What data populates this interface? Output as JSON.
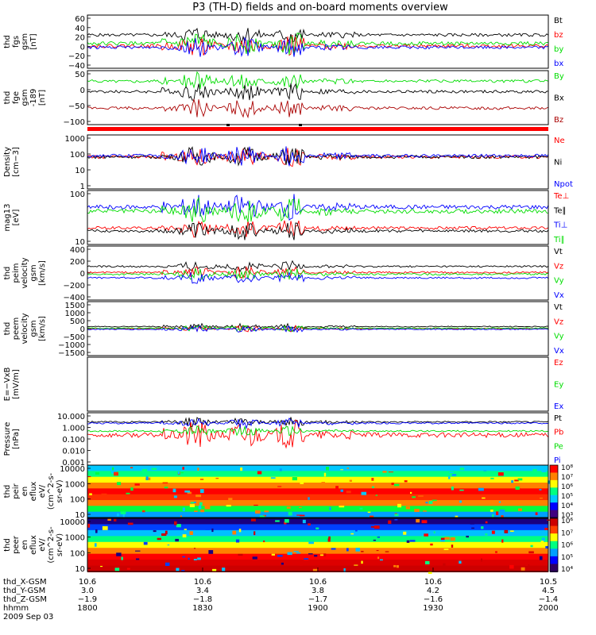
{
  "title": "P3 (TH-D) fields and on-board moments overview",
  "colors": {
    "black": "#000000",
    "red": "#ff0000",
    "green": "#00dd00",
    "blue": "#0000ff",
    "darkred": "#aa0000"
  },
  "chart_data": [
    {
      "type": "line",
      "ylabel": [
        "thd",
        "fgs",
        "gsm",
        "[nT]"
      ],
      "yticks": [
        "60",
        "40",
        "20",
        "0",
        "−20",
        "−40"
      ],
      "ylim": [
        -45,
        62
      ],
      "series": [
        {
          "name": "Bt",
          "color": "black",
          "level": 22,
          "amp": 5
        },
        {
          "name": "bz",
          "color": "red",
          "level": 0,
          "amp": 6
        },
        {
          "name": "by",
          "color": "green",
          "level": 5,
          "amp": 6
        },
        {
          "name": "bx",
          "color": "blue",
          "level": -3,
          "amp": 5
        }
      ]
    },
    {
      "type": "line",
      "ylabel": [
        "thd",
        "fge",
        "gsm",
        "-189",
        "[nT]"
      ],
      "yticks": [
        "50",
        "0",
        "−50",
        "−100"
      ],
      "ylim": [
        -120,
        60
      ],
      "series": [
        {
          "name": "By",
          "color": "green",
          "level": 25,
          "amp": 8
        },
        {
          "name": "Bx",
          "color": "black",
          "level": -10,
          "amp": 8
        },
        {
          "name": "Bz",
          "color": "darkred",
          "level": -65,
          "amp": 8
        }
      ]
    },
    {
      "type": "line",
      "ylabel": [
        "Density",
        "[cm−3]"
      ],
      "yticks": [
        "1000",
        "100",
        "10",
        "1"
      ],
      "log": true,
      "ylim": [
        1,
        1000
      ],
      "series": [
        {
          "name": "Ne",
          "color": "red",
          "level": 60,
          "amp": 0.15
        },
        {
          "name": "Ni",
          "color": "black",
          "level": 60,
          "amp": 0.15
        },
        {
          "name": "Npot",
          "color": "blue",
          "level": 70,
          "amp": 0.15
        }
      ]
    },
    {
      "type": "line",
      "ylabel": [
        "mag13",
        "[eV]"
      ],
      "yticks": [
        "100",
        "10"
      ],
      "log": true,
      "ylim": [
        8,
        1500
      ],
      "series": [
        {
          "name": "Te⊥",
          "color": "red",
          "level": 40,
          "amp": 0.1
        },
        {
          "name": "Te∥",
          "color": "black",
          "level": 30,
          "amp": 0.1
        },
        {
          "name": "Ti⊥",
          "color": "blue",
          "level": 300,
          "amp": 0.15
        },
        {
          "name": "Ti∥",
          "color": "green",
          "level": 200,
          "amp": 0.15
        }
      ]
    },
    {
      "type": "line",
      "ylabel": [
        "thd",
        "peim",
        "velocity",
        "gsm",
        "[km/s]"
      ],
      "yticks": [
        "400",
        "200",
        "0",
        "−200",
        "−400"
      ],
      "ylim": [
        -450,
        450
      ],
      "series": [
        {
          "name": "Vt",
          "color": "black",
          "level": 110,
          "amp": 25
        },
        {
          "name": "Vz",
          "color": "red",
          "level": 10,
          "amp": 25
        },
        {
          "name": "Vy",
          "color": "green",
          "level": -20,
          "amp": 25
        },
        {
          "name": "Vx",
          "color": "blue",
          "level": -80,
          "amp": 25
        }
      ]
    },
    {
      "type": "line",
      "ylabel": [
        "thd",
        "peem",
        "velocity",
        "gsm",
        "[km/s]"
      ],
      "yticks": [
        "1500",
        "1000",
        "500",
        "0",
        "−500",
        "−1000",
        "−1500"
      ],
      "ylim": [
        -1600,
        1600
      ],
      "series": [
        {
          "name": "Vt",
          "color": "black",
          "level": 120,
          "amp": 50
        },
        {
          "name": "Vz",
          "color": "red",
          "level": 0,
          "amp": 50
        },
        {
          "name": "Vy",
          "color": "green",
          "level": 20,
          "amp": 50
        },
        {
          "name": "Vx",
          "color": "blue",
          "level": -40,
          "amp": 50
        }
      ]
    },
    {
      "type": "line",
      "ylabel": [
        "E=−VxB",
        "[mV/m]"
      ],
      "yticks": [],
      "ylim": [
        -1,
        1
      ],
      "series": [
        {
          "name": "Ez",
          "color": "red",
          "values": []
        },
        {
          "name": "Ey",
          "color": "green",
          "values": []
        },
        {
          "name": "Ex",
          "color": "blue",
          "values": []
        }
      ]
    },
    {
      "type": "line",
      "ylabel": [
        "Pressure",
        "[nPa]"
      ],
      "yticks": [
        "10.000",
        "1.000",
        "0.100",
        "0.010",
        "0.001"
      ],
      "log": true,
      "ylim": [
        0.001,
        10
      ],
      "series": [
        {
          "name": "Pt",
          "color": "black",
          "level": 2.0,
          "amp": 0.1
        },
        {
          "name": "Pb",
          "color": "red",
          "level": 0.2,
          "amp": 0.3
        },
        {
          "name": "Pe",
          "color": "green",
          "level": 0.4,
          "amp": 0.1
        },
        {
          "name": "Pi",
          "color": "blue",
          "level": 1.6,
          "amp": 0.1
        }
      ]
    },
    {
      "type": "heatmap",
      "ylabel": [
        "thd",
        "peir",
        "en",
        "eflux",
        "eV/",
        "(cm^2-s-",
        "sr-eV)"
      ],
      "yticks": [
        "10000",
        "1000",
        "100",
        "10"
      ],
      "log": true,
      "ylim": [
        8,
        20000
      ],
      "colorbar_ticks": [
        "10⁸",
        "10⁷",
        "10⁶",
        "10⁵",
        "10⁴",
        "10³"
      ]
    },
    {
      "type": "heatmap",
      "ylabel": [
        "thd",
        "peer",
        "en",
        "eflux",
        "eV/",
        "(cm^2-s-",
        "sr-eV)"
      ],
      "yticks": [
        "10000",
        "1000",
        "100",
        "10"
      ],
      "log": true,
      "ylim": [
        8,
        20000
      ],
      "colorbar_ticks": [
        "10⁶",
        "10⁷",
        "10⁶",
        "10⁵",
        "10⁴"
      ]
    }
  ],
  "x_axis": {
    "labels": [
      "thd_X-GSM",
      "thd_Y-GSM",
      "thd_Z-GSM",
      "hhmm",
      "2009 Sep 03"
    ],
    "ticks": [
      [
        "10.6",
        "3.0",
        "−1.9",
        "1800"
      ],
      [
        "10.6",
        "3.4",
        "−1.8",
        "1830"
      ],
      [
        "10.6",
        "3.8",
        "−1.7",
        "1900"
      ],
      [
        "10.6",
        "4.2",
        "−1.6",
        "1930"
      ],
      [
        "10.5",
        "4.5",
        "−1.4",
        "2000"
      ]
    ]
  }
}
